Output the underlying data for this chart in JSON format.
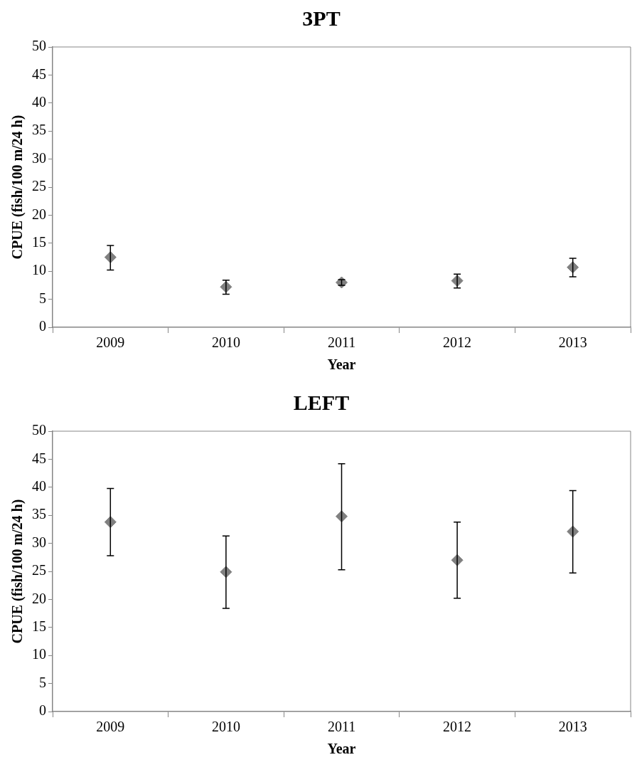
{
  "chart_data": [
    {
      "type": "scatter",
      "title": "3PT",
      "xlabel": "Year",
      "ylabel": "CPUE (fish/100 m/24 h)",
      "categories": [
        "2009",
        "2010",
        "2011",
        "2012",
        "2013"
      ],
      "series": [
        {
          "color": "#808080",
          "values": [
            12.5,
            7.2,
            8.0,
            8.3,
            10.7
          ],
          "errors": [
            [
              10.2,
              14.6
            ],
            [
              5.9,
              8.4
            ],
            [
              7.5,
              8.5
            ],
            [
              7.0,
              9.5
            ],
            [
              9.0,
              12.3
            ]
          ]
        }
      ],
      "ylim": [
        0,
        50
      ],
      "yticks": [
        0,
        5,
        10,
        15,
        20,
        25,
        30,
        35,
        40,
        45,
        50
      ],
      "grid": false,
      "legend": false,
      "marker": "diamond"
    },
    {
      "type": "scatter",
      "title": "LEFT",
      "xlabel": "Year",
      "ylabel": "CPUE (fish/100 m/24 h)",
      "categories": [
        "2009",
        "2010",
        "2011",
        "2012",
        "2013"
      ],
      "series": [
        {
          "color": "#808080",
          "values": [
            33.8,
            24.9,
            34.8,
            27.0,
            32.1
          ],
          "errors": [
            [
              27.8,
              39.8
            ],
            [
              18.4,
              31.3
            ],
            [
              25.3,
              44.2
            ],
            [
              20.2,
              33.8
            ],
            [
              24.7,
              39.4
            ]
          ]
        }
      ],
      "ylim": [
        0,
        50
      ],
      "yticks": [
        0,
        5,
        10,
        15,
        20,
        25,
        30,
        35,
        40,
        45,
        50
      ],
      "grid": false,
      "legend": false,
      "marker": "diamond"
    }
  ]
}
